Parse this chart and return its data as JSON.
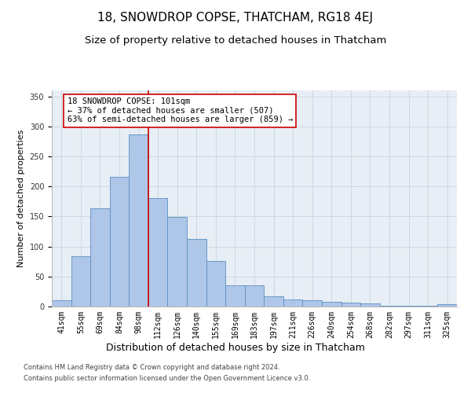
{
  "title": "18, SNOWDROP COPSE, THATCHAM, RG18 4EJ",
  "subtitle": "Size of property relative to detached houses in Thatcham",
  "xlabel": "Distribution of detached houses by size in Thatcham",
  "ylabel": "Number of detached properties",
  "categories": [
    "41sqm",
    "55sqm",
    "69sqm",
    "84sqm",
    "98sqm",
    "112sqm",
    "126sqm",
    "140sqm",
    "155sqm",
    "169sqm",
    "183sqm",
    "197sqm",
    "211sqm",
    "226sqm",
    "240sqm",
    "254sqm",
    "268sqm",
    "282sqm",
    "297sqm",
    "311sqm",
    "325sqm"
  ],
  "values": [
    10,
    84,
    163,
    216,
    287,
    181,
    149,
    112,
    76,
    35,
    35,
    17,
    12,
    11,
    8,
    6,
    5,
    1,
    1,
    1,
    4
  ],
  "bar_color": "#aec6e8",
  "bar_edge_color": "#5a8fc2",
  "vline_x": 4.5,
  "vline_color": "#cc0000",
  "annotation_line1": "18 SNOWDROP COPSE: 101sqm",
  "annotation_line2": "← 37% of detached houses are smaller (507)",
  "annotation_line3": "63% of semi-detached houses are larger (859) →",
  "annotation_box_color": "#ffffff",
  "annotation_box_edge": "#cc0000",
  "ylim": [
    0,
    360
  ],
  "yticks": [
    0,
    50,
    100,
    150,
    200,
    250,
    300,
    350
  ],
  "bg_color": "#e8eef5",
  "footer1": "Contains HM Land Registry data © Crown copyright and database right 2024.",
  "footer2": "Contains public sector information licensed under the Open Government Licence v3.0.",
  "title_fontsize": 11,
  "subtitle_fontsize": 9.5,
  "ylabel_fontsize": 8,
  "xlabel_fontsize": 9,
  "tick_fontsize": 7,
  "annot_fontsize": 7.5,
  "footer_fontsize": 6
}
